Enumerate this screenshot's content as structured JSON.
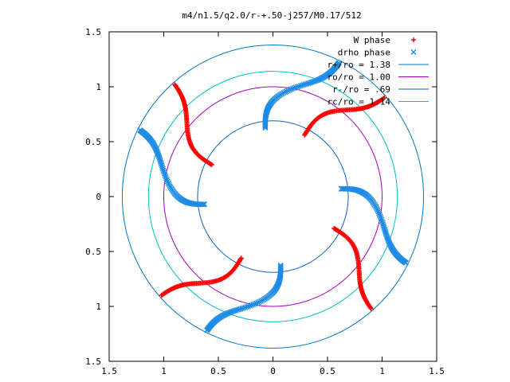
{
  "chart_data": {
    "type": "scatter",
    "title": "m4/n1.5/q2.0/r-+.50-j257/M0.17/512",
    "xlim": [
      -1.5,
      1.5
    ],
    "ylim": [
      -1.5,
      1.5
    ],
    "x_ticks": [
      -1.5,
      -1,
      -0.5,
      0,
      0.5,
      1,
      1.5
    ],
    "y_ticks": [
      -1.5,
      -1,
      -0.5,
      0,
      0.5,
      1,
      1.5
    ],
    "x_tick_labels": [
      "1.5",
      "1",
      "0.5",
      "0",
      "0.5",
      "1",
      "1.5"
    ],
    "y_tick_labels": [
      "1.5",
      "1",
      "0.5",
      "0",
      "0.5",
      "1",
      "1.5"
    ],
    "grid": false,
    "legend_position": "top-right",
    "series": [
      {
        "name": "W phase",
        "kind": "points",
        "marker": "+",
        "color": "#ff0000",
        "arms": [
          {
            "theta_start_deg": 153,
            "theta_end_deg": 131,
            "r_min": 0.63,
            "r_max": 1.36
          },
          {
            "theta_start_deg": 63,
            "theta_end_deg": 41,
            "r_min": 0.63,
            "r_max": 1.36
          },
          {
            "theta_start_deg": -27,
            "theta_end_deg": -49,
            "r_min": 0.63,
            "r_max": 1.36
          },
          {
            "theta_start_deg": -117,
            "theta_end_deg": -139,
            "r_min": 0.63,
            "r_max": 1.36
          }
        ]
      },
      {
        "name": "drho phase",
        "kind": "points",
        "marker": "x",
        "color": "#1e8ce6",
        "arms": [
          {
            "theta_start_deg": -173,
            "theta_end_deg": -207,
            "r_min": 0.63,
            "r_max": 1.36
          },
          {
            "theta_start_deg": 97,
            "theta_end_deg": 63,
            "r_min": 0.63,
            "r_max": 1.36
          },
          {
            "theta_start_deg": 7,
            "theta_end_deg": -27,
            "r_min": 0.63,
            "r_max": 1.36
          },
          {
            "theta_start_deg": -83,
            "theta_end_deg": -117,
            "r_min": 0.63,
            "r_max": 1.36
          }
        ]
      },
      {
        "name": "r+/ro = 1.38",
        "kind": "circle",
        "radius": 1.38,
        "color": "#0077c0"
      },
      {
        "name": "ro/ro = 1.00",
        "kind": "circle",
        "radius": 1.0,
        "color": "#a000c0"
      },
      {
        "name": "r-/ro = .69",
        "kind": "circle",
        "radius": 0.69,
        "color": "#1060c0"
      },
      {
        "name": "rc/ro = 1.14",
        "kind": "circle",
        "radius": 1.14,
        "color": "#00c0c0"
      }
    ]
  }
}
